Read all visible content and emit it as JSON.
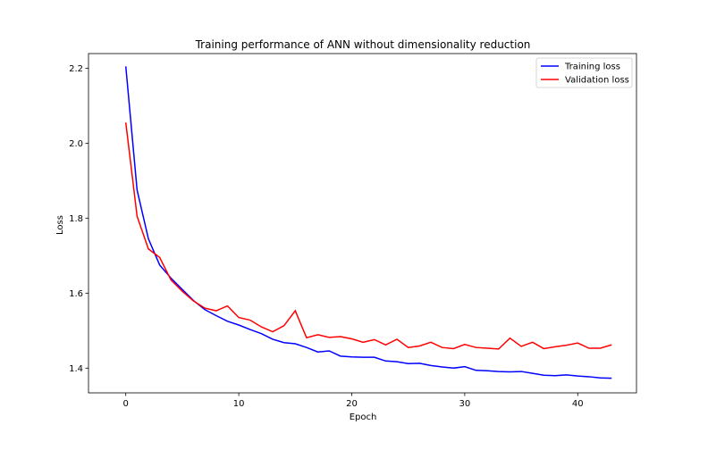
{
  "chart_data": {
    "type": "line",
    "title": "Training performance of ANN without dimensionality reduction",
    "xlabel": "Epoch",
    "ylabel": "Loss",
    "xlim": [
      -3.3,
      45.2
    ],
    "ylim": [
      1.334,
      2.239
    ],
    "xticks": [
      0,
      10,
      20,
      30,
      40
    ],
    "yticks": [
      1.4,
      1.6,
      1.8,
      2.0,
      2.2
    ],
    "grid": false,
    "legend_position": "top-right",
    "x": [
      0,
      1,
      2,
      3,
      4,
      5,
      6,
      7,
      8,
      9,
      10,
      11,
      12,
      13,
      14,
      15,
      16,
      17,
      18,
      19,
      20,
      21,
      22,
      23,
      24,
      25,
      26,
      27,
      28,
      29,
      30,
      31,
      32,
      33,
      34,
      35,
      36,
      37,
      38,
      39,
      40,
      41,
      42,
      43
    ],
    "series": [
      {
        "name": "Training loss",
        "color": "#0000ff",
        "values": [
          2.205,
          1.875,
          1.745,
          1.675,
          1.64,
          1.61,
          1.58,
          1.556,
          1.54,
          1.525,
          1.515,
          1.503,
          1.492,
          1.477,
          1.468,
          1.465,
          1.455,
          1.443,
          1.446,
          1.432,
          1.43,
          1.429,
          1.429,
          1.419,
          1.417,
          1.412,
          1.413,
          1.407,
          1.403,
          1.4,
          1.404,
          1.394,
          1.393,
          1.391,
          1.39,
          1.391,
          1.386,
          1.381,
          1.38,
          1.382,
          1.379,
          1.377,
          1.374,
          1.373
        ]
      },
      {
        "name": "Validation loss",
        "color": "#ff0000",
        "values": [
          2.055,
          1.805,
          1.718,
          1.695,
          1.635,
          1.605,
          1.579,
          1.56,
          1.553,
          1.566,
          1.535,
          1.528,
          1.51,
          1.497,
          1.513,
          1.553,
          1.481,
          1.489,
          1.482,
          1.484,
          1.478,
          1.469,
          1.476,
          1.462,
          1.477,
          1.455,
          1.459,
          1.469,
          1.455,
          1.452,
          1.463,
          1.455,
          1.453,
          1.451,
          1.48,
          1.458,
          1.469,
          1.452,
          1.457,
          1.461,
          1.467,
          1.453,
          1.453,
          1.462
        ]
      }
    ]
  }
}
